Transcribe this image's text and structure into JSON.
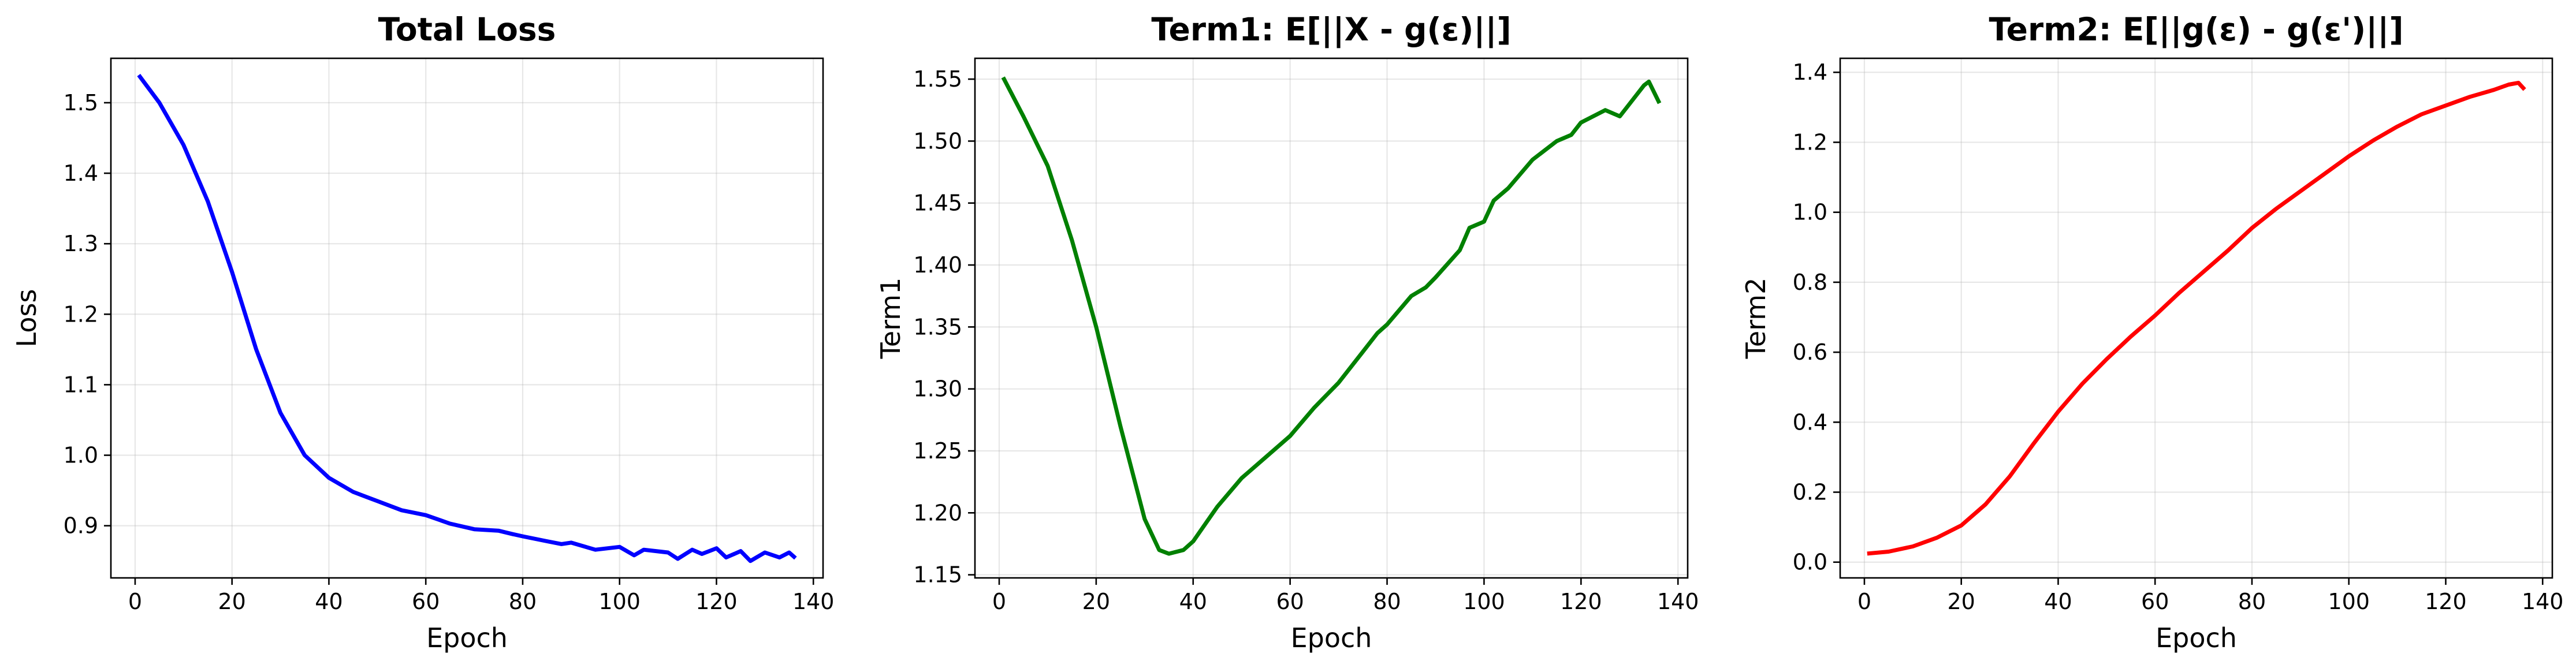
{
  "chart_data": [
    {
      "type": "line",
      "title": "Total Loss",
      "xlabel": "Epoch",
      "ylabel": "Loss",
      "xlim": [
        -5,
        142
      ],
      "ylim": [
        0.826,
        1.563
      ],
      "xticks": [
        0,
        20,
        40,
        60,
        80,
        100,
        120,
        140
      ],
      "yticks": [
        0.9,
        1.0,
        1.1,
        1.2,
        1.3,
        1.4,
        1.5
      ],
      "grid": true,
      "color": "#0000ff",
      "series": [
        {
          "x": [
            1,
            5,
            10,
            15,
            20,
            25,
            30,
            35,
            40,
            45,
            50,
            55,
            60,
            65,
            70,
            75,
            78,
            80,
            85,
            88,
            90,
            95,
            100,
            103,
            105,
            110,
            112,
            115,
            117,
            120,
            122,
            125,
            127,
            130,
            133,
            135,
            136
          ],
          "y": [
            1.537,
            1.5,
            1.44,
            1.36,
            1.26,
            1.15,
            1.06,
            1.0,
            0.968,
            0.948,
            0.935,
            0.922,
            0.915,
            0.903,
            0.895,
            0.893,
            0.888,
            0.885,
            0.878,
            0.874,
            0.876,
            0.866,
            0.87,
            0.858,
            0.866,
            0.862,
            0.853,
            0.866,
            0.86,
            0.868,
            0.855,
            0.864,
            0.85,
            0.862,
            0.855,
            0.862,
            0.856
          ]
        }
      ]
    },
    {
      "type": "line",
      "title": "Term1: E[||X - g(ε)||]",
      "xlabel": "Epoch",
      "ylabel": "Term1",
      "xlim": [
        -5,
        142
      ],
      "ylim": [
        1.1475,
        1.5668
      ],
      "xticks": [
        0,
        20,
        40,
        60,
        80,
        100,
        120,
        140
      ],
      "yticks": [
        1.15,
        1.2,
        1.25,
        1.3,
        1.35,
        1.4,
        1.45,
        1.5,
        1.55
      ],
      "grid": true,
      "color": "#008000",
      "series": [
        {
          "x": [
            1,
            5,
            10,
            15,
            20,
            25,
            30,
            33,
            35,
            38,
            40,
            45,
            50,
            55,
            60,
            65,
            70,
            75,
            78,
            80,
            85,
            88,
            90,
            95,
            97,
            100,
            102,
            105,
            110,
            115,
            118,
            120,
            125,
            128,
            130,
            133,
            134,
            136
          ],
          "y": [
            1.55,
            1.52,
            1.48,
            1.42,
            1.35,
            1.27,
            1.195,
            1.17,
            1.167,
            1.17,
            1.177,
            1.205,
            1.228,
            1.245,
            1.262,
            1.285,
            1.305,
            1.33,
            1.345,
            1.352,
            1.375,
            1.382,
            1.39,
            1.412,
            1.43,
            1.435,
            1.452,
            1.462,
            1.485,
            1.5,
            1.505,
            1.515,
            1.525,
            1.52,
            1.53,
            1.545,
            1.548,
            1.532
          ]
        }
      ]
    },
    {
      "type": "line",
      "title": "Term2: E[||g(ε) - g(ε')||]",
      "xlabel": "Epoch",
      "ylabel": "Term2",
      "xlim": [
        -5,
        142
      ],
      "ylim": [
        -0.045,
        1.44
      ],
      "xticks": [
        0,
        20,
        40,
        60,
        80,
        100,
        120,
        140
      ],
      "yticks": [
        0.0,
        0.2,
        0.4,
        0.6,
        0.8,
        1.0,
        1.2,
        1.4
      ],
      "grid": true,
      "color": "#ff0000",
      "series": [
        {
          "x": [
            1,
            5,
            10,
            15,
            20,
            25,
            30,
            35,
            40,
            45,
            50,
            55,
            60,
            65,
            70,
            75,
            80,
            85,
            90,
            95,
            100,
            105,
            110,
            115,
            120,
            125,
            130,
            133,
            135,
            136
          ],
          "y": [
            0.025,
            0.03,
            0.045,
            0.07,
            0.105,
            0.165,
            0.245,
            0.34,
            0.43,
            0.51,
            0.58,
            0.645,
            0.705,
            0.77,
            0.83,
            0.89,
            0.955,
            1.01,
            1.06,
            1.11,
            1.16,
            1.205,
            1.245,
            1.28,
            1.305,
            1.33,
            1.35,
            1.365,
            1.37,
            1.355
          ]
        }
      ]
    }
  ]
}
